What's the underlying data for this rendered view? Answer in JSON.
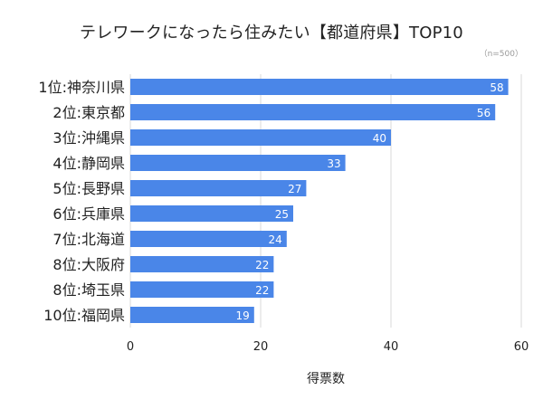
{
  "chart_data": {
    "type": "bar",
    "orientation": "horizontal",
    "title": "テレワークになったら住みたい【都道府県】TOP10",
    "note": "（n=500）",
    "xlabel": "得票数",
    "ylabel": "",
    "categories": [
      "1位:神奈川県",
      "2位:東京都",
      "3位:沖縄県",
      "4位:静岡県",
      "5位:長野県",
      "6位:兵庫県",
      "7位:北海道",
      "8位:大阪府",
      "8位:埼玉県",
      "10位:福岡県"
    ],
    "values": [
      58,
      56,
      40,
      33,
      27,
      25,
      24,
      22,
      22,
      19
    ],
    "xlim": [
      0,
      60
    ],
    "xticks": [
      0,
      20,
      40,
      60
    ],
    "grid": true,
    "data_labels": true,
    "bar_color": "#4a86e8",
    "label_color": "#ffffff",
    "grid_color": "#d9d9d9"
  }
}
